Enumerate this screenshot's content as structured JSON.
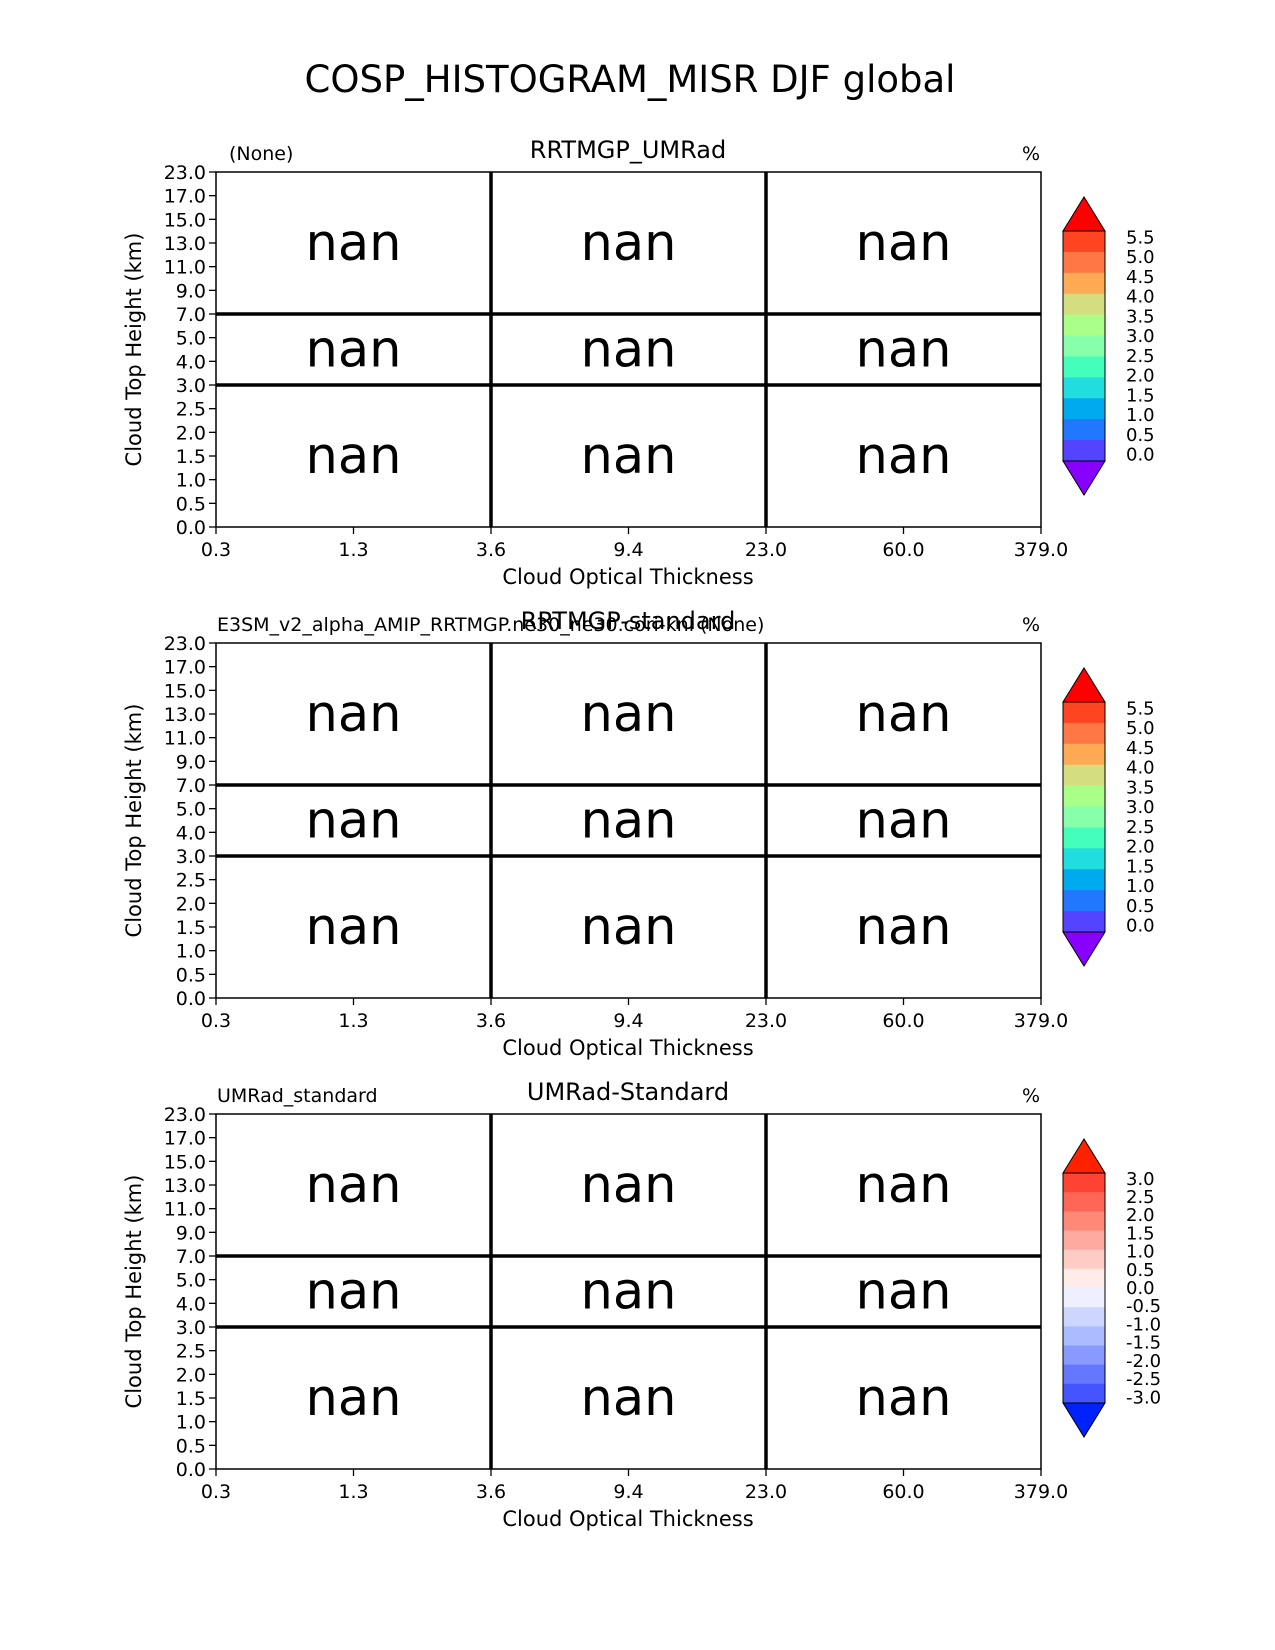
{
  "figure_title": "COSP_HISTOGRAM_MISR DJF global",
  "chart_data": [
    {
      "type": "heatmap",
      "title": "RRTMGP_UMRad",
      "left_label": "(None)",
      "units": "%",
      "xlabel": "Cloud Optical Thickness",
      "ylabel": "Cloud Top Height (km)",
      "x_ticks": [
        "0.3",
        "1.3",
        "3.6",
        "9.4",
        "23.0",
        "60.0",
        "379.0"
      ],
      "y_ticks": [
        "0.0",
        "0.5",
        "1.0",
        "1.5",
        "2.0",
        "2.5",
        "3.0",
        "4.0",
        "5.0",
        "7.0",
        "9.0",
        "11.0",
        "13.0",
        "15.0",
        "17.0",
        "23.0"
      ],
      "cells": [
        [
          "nan",
          "nan",
          "nan"
        ],
        [
          "nan",
          "nan",
          "nan"
        ],
        [
          "nan",
          "nan",
          "nan"
        ]
      ],
      "colorbar": {
        "ticks": [
          "5.5",
          "5.0",
          "4.5",
          "4.0",
          "3.5",
          "3.0",
          "2.5",
          "2.0",
          "1.5",
          "1.0",
          "0.5",
          "0.0"
        ],
        "colors": [
          "#ff0000",
          "#ff4422",
          "#ff7744",
          "#ffaa55",
          "#d4dd80",
          "#aaff88",
          "#88ffaa",
          "#44ffbb",
          "#22dddd",
          "#00aaee",
          "#2277ff",
          "#5544ff",
          "#8800ff"
        ]
      }
    },
    {
      "type": "heatmap",
      "title": "RRTMGP-standard",
      "left_label": "E3SM_v2_alpha_AMIP_RRTMGP.ne30_ne30.cori-knl (None)",
      "units": "%",
      "xlabel": "Cloud Optical Thickness",
      "ylabel": "Cloud Top Height (km)",
      "x_ticks": [
        "0.3",
        "1.3",
        "3.6",
        "9.4",
        "23.0",
        "60.0",
        "379.0"
      ],
      "y_ticks": [
        "0.0",
        "0.5",
        "1.0",
        "1.5",
        "2.0",
        "2.5",
        "3.0",
        "4.0",
        "5.0",
        "7.0",
        "9.0",
        "11.0",
        "13.0",
        "15.0",
        "17.0",
        "23.0"
      ],
      "cells": [
        [
          "nan",
          "nan",
          "nan"
        ],
        [
          "nan",
          "nan",
          "nan"
        ],
        [
          "nan",
          "nan",
          "nan"
        ]
      ],
      "colorbar": {
        "ticks": [
          "5.5",
          "5.0",
          "4.5",
          "4.0",
          "3.5",
          "3.0",
          "2.5",
          "2.0",
          "1.5",
          "1.0",
          "0.5",
          "0.0"
        ],
        "colors": [
          "#ff0000",
          "#ff4422",
          "#ff7744",
          "#ffaa55",
          "#d4dd80",
          "#aaff88",
          "#88ffaa",
          "#44ffbb",
          "#22dddd",
          "#00aaee",
          "#2277ff",
          "#5544ff",
          "#8800ff"
        ]
      }
    },
    {
      "type": "heatmap",
      "title": "UMRad-Standard",
      "left_label": "UMRad_standard",
      "units": "%",
      "xlabel": "Cloud Optical Thickness",
      "ylabel": "Cloud Top Height (km)",
      "x_ticks": [
        "0.3",
        "1.3",
        "3.6",
        "9.4",
        "23.0",
        "60.0",
        "379.0"
      ],
      "y_ticks": [
        "0.0",
        "0.5",
        "1.0",
        "1.5",
        "2.0",
        "2.5",
        "3.0",
        "4.0",
        "5.0",
        "7.0",
        "9.0",
        "11.0",
        "13.0",
        "15.0",
        "17.0",
        "23.0"
      ],
      "cells": [
        [
          "nan",
          "nan",
          "nan"
        ],
        [
          "nan",
          "nan",
          "nan"
        ],
        [
          "nan",
          "nan",
          "nan"
        ]
      ],
      "colorbar": {
        "ticks": [
          "3.0",
          "2.5",
          "2.0",
          "1.5",
          "1.0",
          "0.5",
          "0.0",
          "-0.5",
          "-1.0",
          "-1.5",
          "-2.0",
          "-2.5",
          "-3.0"
        ],
        "colors": [
          "#ff2200",
          "#ff4433",
          "#ff6655",
          "#ff8877",
          "#ffaaa0",
          "#ffccc4",
          "#ffece8",
          "#eef0ff",
          "#ccd6ff",
          "#aabbff",
          "#8899ff",
          "#6677ff",
          "#4455ff",
          "#0022ff"
        ]
      }
    }
  ]
}
